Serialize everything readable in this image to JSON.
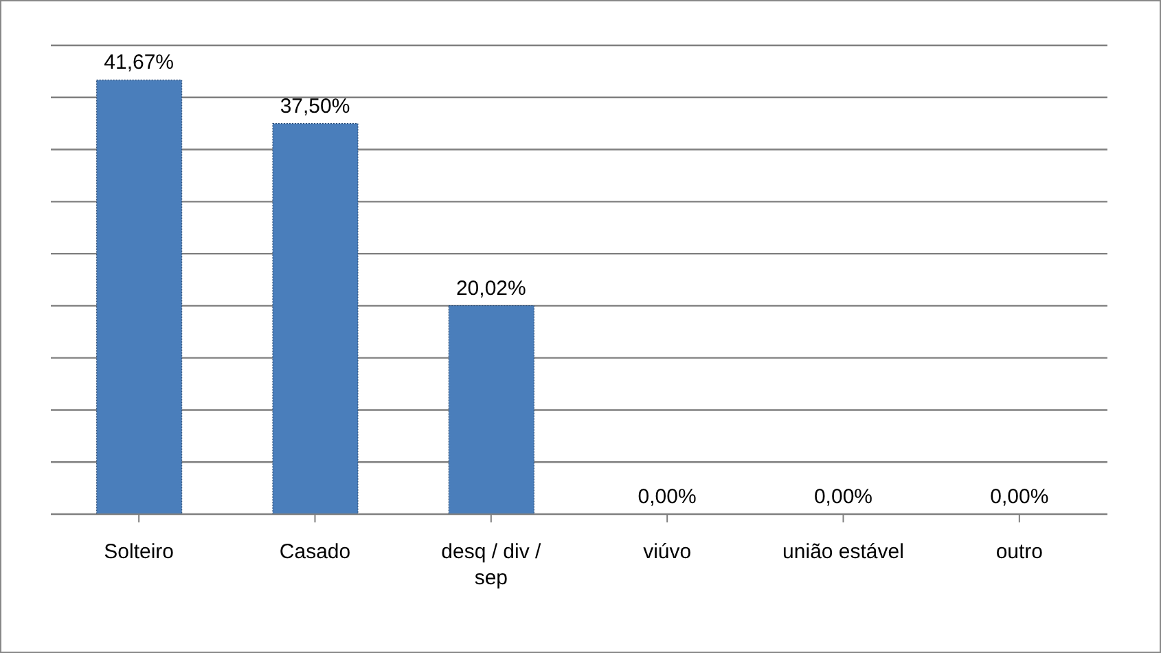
{
  "chart_data": {
    "type": "bar",
    "categories": [
      "Solteiro",
      "Casado",
      "desq / div / sep",
      "viúvo",
      "união estável",
      "outro"
    ],
    "values": [
      41.67,
      37.5,
      20.02,
      0,
      0,
      0
    ],
    "value_labels": [
      "41,67%",
      "37,50%",
      "20,02%",
      "0,00%",
      "0,00%",
      "0,00%"
    ],
    "color": "#4a7ebb",
    "ylim": [
      0,
      45
    ],
    "yticks": [
      {
        "value": 0,
        "label": null
      },
      {
        "value": 5,
        "label": null
      },
      {
        "value": 10,
        "label": null
      },
      {
        "value": 15,
        "label": null
      },
      {
        "value": 20,
        "label": null
      },
      {
        "value": 25,
        "label": null
      },
      {
        "value": 30,
        "label": null
      },
      {
        "value": 35,
        "label": null
      },
      {
        "value": 40,
        "label": null
      },
      {
        "value": 45,
        "label": null
      }
    ],
    "grid": "y",
    "tick_labels": "x",
    "legend": false
  }
}
